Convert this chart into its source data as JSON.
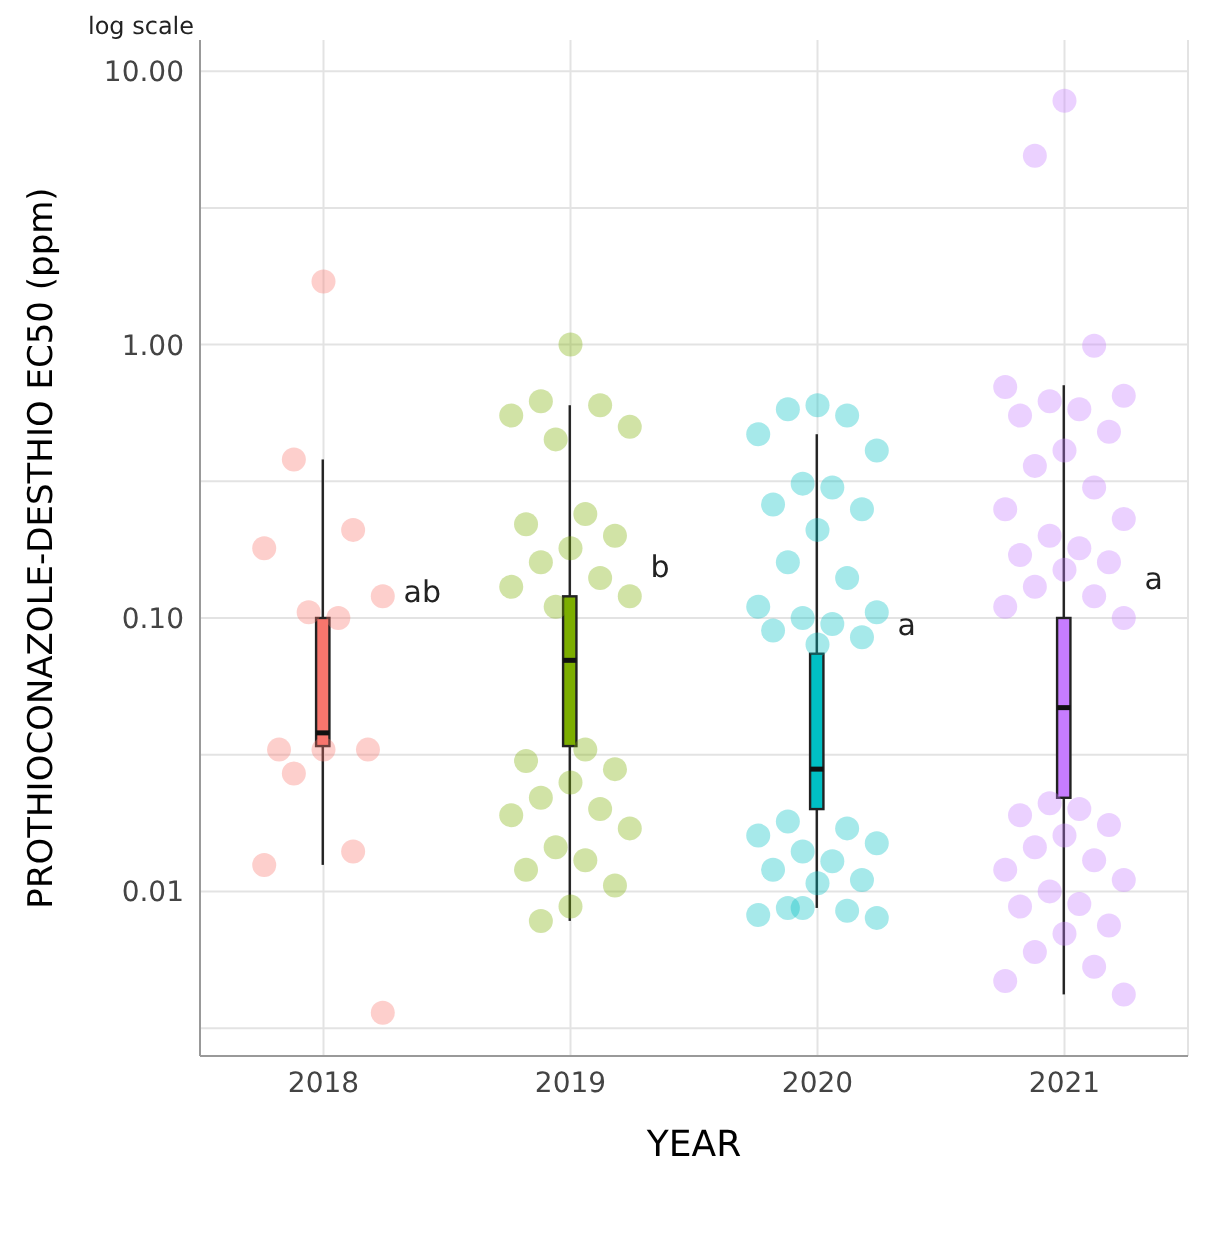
{
  "chart_data": {
    "type": "box",
    "xlabel": "YEAR",
    "ylabel": "PROTHIOCONAZOLE-DESTHIO EC50 (ppm)",
    "x": [
      2018,
      2019,
      2020,
      2021
    ],
    "xlim": [
      2017.5,
      2021.5
    ],
    "xticks": [
      2018,
      2019,
      2020,
      2021
    ],
    "colors": [
      "#f8766d",
      "#7cae00",
      "#00bfc4",
      "#c77cff"
    ],
    "boxes": [
      {
        "low": 0.0125,
        "q1": 0.034,
        "median": 0.038,
        "q3": 0.1,
        "high": 0.38
      },
      {
        "low": 0.0078,
        "q1": 0.034,
        "median": 0.07,
        "q3": 0.12,
        "high": 0.6
      },
      {
        "low": 0.0087,
        "q1": 0.02,
        "median": 0.028,
        "q3": 0.074,
        "high": 0.47
      },
      {
        "low": 0.0042,
        "q1": 0.022,
        "median": 0.047,
        "q3": 0.1,
        "high": 0.71
      }
    ],
    "series": [
      {
        "type": "scatter",
        "color": "#f8766d",
        "x": [
          2018,
          2017.88,
          2018.12,
          2017.76,
          2018.24,
          2017.94,
          2018.06,
          2017.82,
          2018.18,
          2018,
          2017.88,
          2018.12,
          2017.76,
          2018.24
        ],
        "values": [
          1.7,
          0.38,
          0.21,
          0.18,
          0.12,
          0.105,
          0.1,
          0.033,
          0.033,
          0.033,
          0.027,
          0.014,
          0.0125,
          0.0036
        ]
      },
      {
        "type": "scatter",
        "color": "#7cae00",
        "x": [
          2019,
          2018.88,
          2019.12,
          2018.76,
          2019.24,
          2018.94,
          2019.06,
          2018.82,
          2019.18,
          2019,
          2018.88,
          2019.12,
          2018.76,
          2019.24,
          2018.94,
          2019.06,
          2018.82,
          2019.18,
          2019,
          2018.88,
          2019.12,
          2018.76,
          2019.24,
          2018.94,
          2019.06,
          2018.82,
          2019.18,
          2019,
          2018.88
        ],
        "values": [
          1.0,
          0.62,
          0.6,
          0.55,
          0.5,
          0.45,
          0.24,
          0.22,
          0.2,
          0.18,
          0.16,
          0.14,
          0.13,
          0.12,
          0.11,
          0.033,
          0.03,
          0.028,
          0.025,
          0.022,
          0.02,
          0.019,
          0.017,
          0.0145,
          0.013,
          0.012,
          0.0105,
          0.0088,
          0.0078
        ]
      },
      {
        "type": "scatter",
        "color": "#00bfc4",
        "x": [
          2020,
          2019.88,
          2020.12,
          2019.76,
          2020.24,
          2019.94,
          2020.06,
          2019.82,
          2020.18,
          2020,
          2019.88,
          2020.12,
          2019.76,
          2020.24,
          2019.94,
          2020.06,
          2019.82,
          2020.18,
          2020,
          2019.88,
          2020.12,
          2019.76,
          2020.24,
          2019.94,
          2020.06,
          2019.82,
          2020.18,
          2020,
          2019.88,
          2020.12,
          2019.76,
          2020.24,
          2019.94
        ],
        "values": [
          0.6,
          0.58,
          0.55,
          0.47,
          0.41,
          0.31,
          0.3,
          0.26,
          0.25,
          0.21,
          0.16,
          0.14,
          0.11,
          0.105,
          0.1,
          0.095,
          0.09,
          0.085,
          0.08,
          0.018,
          0.017,
          0.016,
          0.015,
          0.014,
          0.0129,
          0.012,
          0.011,
          0.0107,
          0.0087,
          0.0085,
          0.0082,
          0.008,
          0.0087
        ]
      },
      {
        "type": "scatter",
        "color": "#c77cff",
        "x": [
          2021,
          2020.88,
          2021.12,
          2020.76,
          2021.24,
          2020.94,
          2021.06,
          2020.82,
          2021.18,
          2021,
          2020.88,
          2021.12,
          2020.76,
          2021.24,
          2020.94,
          2021.06,
          2020.82,
          2021.18,
          2021,
          2020.88,
          2021.12,
          2020.76,
          2021.24,
          2020.94,
          2021.06,
          2020.82,
          2021.18,
          2021,
          2020.88,
          2021.12,
          2020.76,
          2021.24,
          2020.94,
          2021.06,
          2020.82,
          2021.18,
          2021,
          2020.88,
          2021.12,
          2020.76,
          2021.24
        ],
        "values": [
          7.8,
          4.9,
          0.99,
          0.7,
          0.65,
          0.62,
          0.58,
          0.55,
          0.48,
          0.41,
          0.36,
          0.3,
          0.25,
          0.23,
          0.2,
          0.18,
          0.17,
          0.16,
          0.15,
          0.13,
          0.12,
          0.11,
          0.1,
          0.021,
          0.02,
          0.019,
          0.0175,
          0.016,
          0.0145,
          0.013,
          0.012,
          0.011,
          0.01,
          0.009,
          0.0088,
          0.0075,
          0.007,
          0.006,
          0.0053,
          0.0047,
          0.0042
        ]
      }
    ],
    "log": true,
    "ylim": [
      0.0025,
      13
    ],
    "yticks": [
      {
        "value": 0.01,
        "label": "0.01"
      },
      {
        "value": 0.1,
        "label": "0.10"
      },
      {
        "value": 1,
        "label": "1.00"
      },
      {
        "value": 10,
        "label": "10.00"
      },
      {
        "value": 0.00316,
        "label": null
      },
      {
        "value": 0.0316,
        "label": null
      },
      {
        "value": 0.316,
        "label": null
      },
      {
        "value": 3.16,
        "label": null
      }
    ],
    "grid": true,
    "legend": false,
    "annotations": [
      "log scale",
      {
        "text": "ab",
        "x": 2018,
        "y": 0.125
      },
      {
        "text": "b",
        "x": 2019,
        "y": 0.155
      },
      {
        "text": "a",
        "x": 2020,
        "y": 0.095
      },
      {
        "text": "a",
        "x": 2021,
        "y": 0.14
      }
    ]
  }
}
